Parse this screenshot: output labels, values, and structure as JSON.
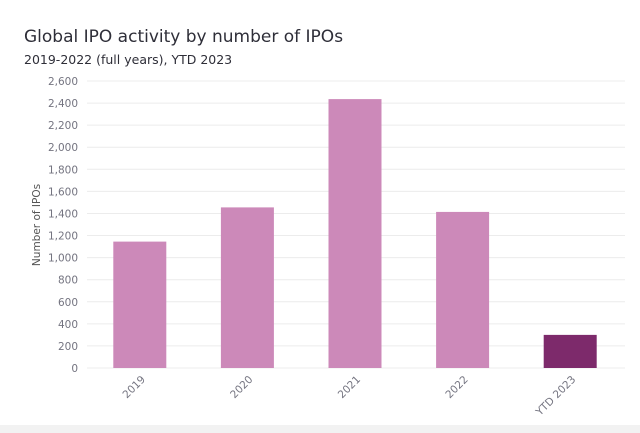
{
  "chart_data": {
    "type": "bar",
    "title": "Global IPO activity by number of IPOs",
    "subtitle": "2019-2022 (full years), YTD 2023",
    "xlabel": "",
    "ylabel": "Number of IPOs",
    "categories": [
      "2019",
      "2020",
      "2021",
      "2022",
      "YTD 2023"
    ],
    "values": [
      1145,
      1455,
      2436,
      1414,
      300
    ],
    "bar_colors": [
      "#cc89b9",
      "#cc89b9",
      "#cc89b9",
      "#cc89b9",
      "#7d2a6b"
    ],
    "ylim": [
      0,
      2600
    ],
    "yticks": [
      0,
      200,
      400,
      600,
      800,
      1000,
      1200,
      1400,
      1600,
      1800,
      2000,
      2200,
      2400,
      2600
    ],
    "ytick_labels": [
      "0",
      "200",
      "400",
      "600",
      "800",
      "1,000",
      "1,200",
      "1,400",
      "1,600",
      "1,800",
      "2,000",
      "2,200",
      "2,400",
      "2,600"
    ],
    "grid": true,
    "legend": "none"
  }
}
